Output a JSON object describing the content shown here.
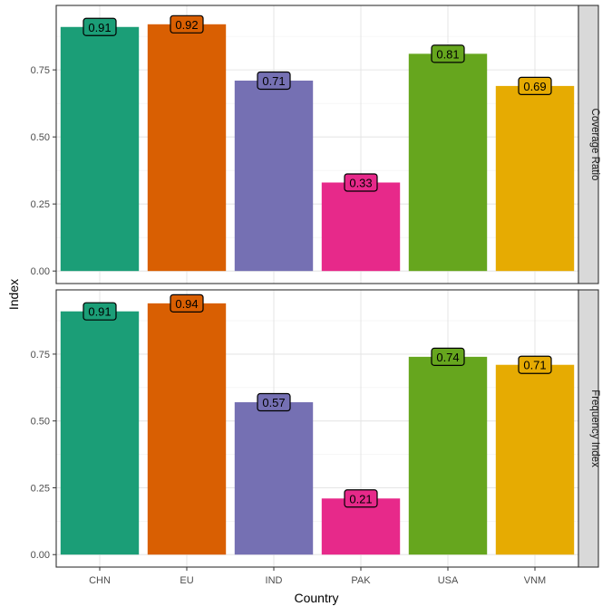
{
  "chart_data": {
    "type": "bar",
    "xlabel": "Country",
    "ylabel": "Index",
    "categories": [
      "CHN",
      "EU",
      "IND",
      "PAK",
      "USA",
      "VNM"
    ],
    "colors": [
      "#1B9E77",
      "#D95F02",
      "#7570B3",
      "#E7298A",
      "#66A61E",
      "#E6AB02"
    ],
    "ylim": [
      0,
      0.97
    ],
    "yticks": [
      0,
      0.25,
      0.5,
      0.75
    ],
    "ytick_labels": [
      "0.00",
      "0.25",
      "0.50",
      "0.75"
    ],
    "grid": true,
    "facet_position": "right",
    "panels": [
      {
        "strip_label": "Coverage Ratio",
        "values": [
          0.91,
          0.92,
          0.71,
          0.33,
          0.81,
          0.69
        ],
        "data_labels": [
          "0.91",
          "0.92",
          "0.71",
          "0.33",
          "0.81",
          "0.69"
        ]
      },
      {
        "strip_label": "Frequency Index",
        "values": [
          0.91,
          0.94,
          0.57,
          0.21,
          0.74,
          0.71
        ],
        "data_labels": [
          "0.91",
          "0.94",
          "0.57",
          "0.21",
          "0.74",
          "0.71"
        ]
      }
    ]
  }
}
